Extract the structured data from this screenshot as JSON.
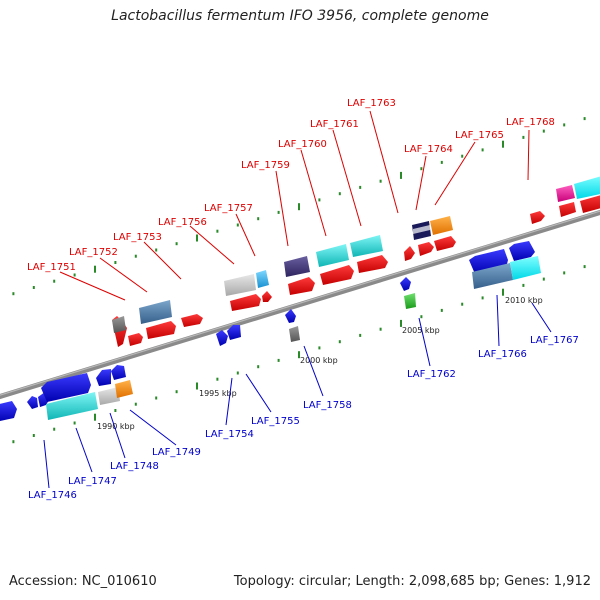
{
  "title": "Lactobacillus fermentum IFO 3956, complete genome",
  "footer": {
    "accession": "Accession: NC_010610",
    "summary": "Topology: circular; Length: 2,098,685 bp; Genes: 1,912"
  },
  "colors": {
    "top_label": "#dd0000",
    "bottom_label": "#0000cc",
    "backbone": "#8a8a8a",
    "tick": "#2a8a2a"
  },
  "scale_labels": [
    "1990 kbp",
    "1995 kbp",
    "2000 kbp",
    "2005 kbp",
    "2010 kbp"
  ],
  "top_genes": [
    "LAF_1751",
    "LAF_1752",
    "LAF_1753",
    "LAF_1756",
    "LAF_1757",
    "LAF_1759",
    "LAF_1760",
    "LAF_1761",
    "LAF_1763",
    "LAF_1764",
    "LAF_1765",
    "LAF_1768"
  ],
  "bottom_genes": [
    "LAF_1746",
    "LAF_1747",
    "LAF_1748",
    "LAF_1749",
    "LAF_1754",
    "LAF_1755",
    "LAF_1758",
    "LAF_1762",
    "LAF_1766",
    "LAF_1767"
  ]
}
